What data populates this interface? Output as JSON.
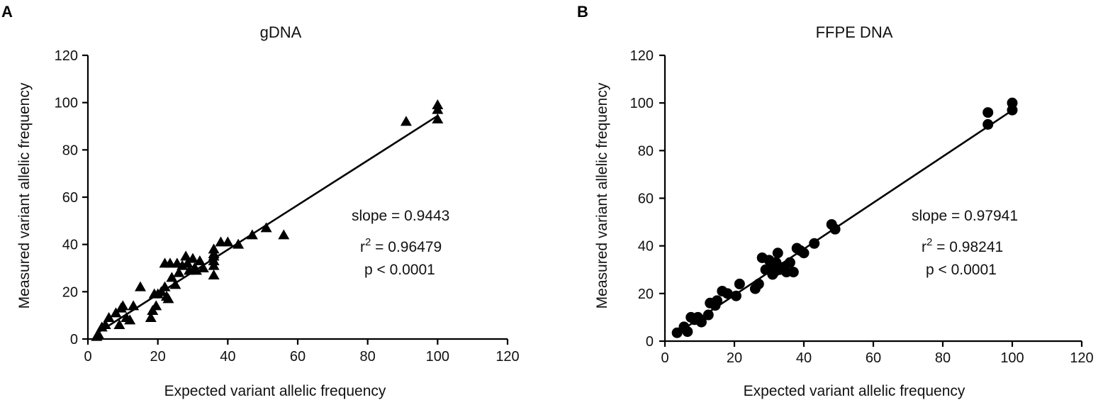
{
  "chart_data": [
    {
      "panel": "A",
      "type": "scatter",
      "marker": "triangle",
      "title": "gDNA",
      "xlabel": "Expected variant allelic frequency",
      "ylabel": "Measured variant allelic frequency",
      "xlim": [
        0,
        120
      ],
      "ylim": [
        0,
        120
      ],
      "xticks": [
        0,
        20,
        40,
        60,
        80,
        100,
        120
      ],
      "yticks": [
        0,
        20,
        40,
        60,
        80,
        100,
        120
      ],
      "fit": {
        "x": [
          2.5,
          100
        ],
        "y": [
          2.4,
          94.4
        ]
      },
      "stats": {
        "slope": "slope = 0.9443",
        "r2_prefix": "r",
        "r2_sup": "2",
        "r2_value": " = 0.96479",
        "p": "p  < 0.0001"
      },
      "points": {
        "x": [
          2.5,
          3,
          4,
          5,
          6,
          8,
          9,
          9.5,
          10,
          11,
          12,
          13,
          15,
          18,
          18.5,
          19,
          19.5,
          20,
          21,
          22,
          22,
          22.5,
          23,
          23.5,
          24,
          25,
          25.5,
          26,
          27,
          28,
          28.5,
          29,
          30,
          30.5,
          31,
          32,
          33,
          36,
          36,
          36,
          36,
          36,
          36,
          38,
          40,
          43,
          47,
          51,
          56,
          91,
          100,
          100,
          100
        ],
        "y": [
          1,
          2,
          5,
          6,
          9,
          11,
          6,
          13,
          14,
          9,
          8,
          14,
          22,
          9,
          12,
          19,
          14,
          19,
          20,
          32,
          22,
          18,
          17,
          32,
          26,
          23,
          32,
          28,
          31,
          35,
          32,
          29,
          34,
          30,
          29,
          33,
          30,
          27,
          33,
          36,
          38,
          35,
          31,
          41,
          41,
          40,
          44,
          47,
          44,
          92,
          93,
          97,
          99
        ]
      }
    },
    {
      "panel": "B",
      "type": "scatter",
      "marker": "circle",
      "title": "FFPE DNA",
      "xlabel": "Expected variant allelic frequency",
      "ylabel": "Measured variant allelic frequency",
      "xlim": [
        0,
        120
      ],
      "ylim": [
        0,
        120
      ],
      "xticks": [
        0,
        20,
        40,
        60,
        80,
        100,
        120
      ],
      "yticks": [
        0,
        20,
        40,
        60,
        80,
        100,
        120
      ],
      "fit": {
        "x": [
          3.5,
          100
        ],
        "y": [
          3.3,
          96.9
        ]
      },
      "stats": {
        "slope": "slope = 0.97941",
        "r2_prefix": "r",
        "r2_sup": "2",
        "r2_value": " = 0.98241",
        "p": "p  < 0.0001"
      },
      "points": {
        "x": [
          3.5,
          5.5,
          6.5,
          7.5,
          8.5,
          9.5,
          10.5,
          12.5,
          13,
          14.5,
          15,
          16.5,
          18,
          20.5,
          21.5,
          26,
          27,
          28,
          29,
          30,
          30.5,
          31,
          31.5,
          32,
          32.5,
          33,
          34,
          35,
          36,
          37,
          38,
          39,
          40,
          43,
          48,
          49,
          93,
          93,
          100,
          100
        ],
        "y": [
          3.5,
          6,
          4,
          10,
          9,
          10,
          8,
          11,
          16,
          15,
          17,
          21,
          20,
          19,
          24,
          22,
          24,
          35,
          30,
          34,
          31,
          28,
          29,
          33,
          37,
          30,
          31,
          29,
          33,
          29,
          39,
          38,
          37,
          41,
          49,
          47,
          91,
          96,
          97,
          100
        ]
      }
    }
  ]
}
